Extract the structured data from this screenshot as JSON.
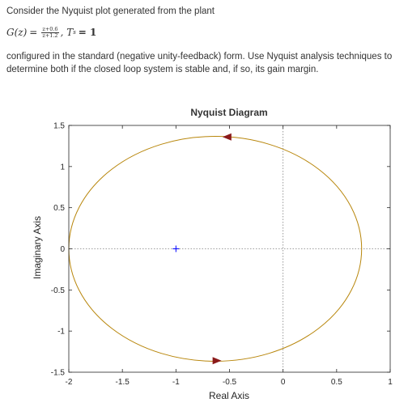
{
  "question": {
    "intro": "Consider the Nyquist plot generated from the plant",
    "eq_lhs": "G(z)",
    "eq_equals": "=",
    "frac_num": "z+0.6",
    "frac_den": "z+1.2",
    "eq_ts": ", T",
    "eq_ts_sub": "s",
    "eq_ts_val": "= 1",
    "body": "configured in the standard (negative unity-feedback) form. Use Nyquist analysis techniques to determine both if the closed loop system is stable and, if so, its gain margin."
  },
  "chart_data": {
    "type": "line",
    "title": "Nyquist Diagram",
    "xlabel": "Real Axis",
    "ylabel": "Imaginary Axis",
    "xlim": [
      -2,
      1
    ],
    "ylim": [
      -1.5,
      1.5
    ],
    "xticks": [
      -2,
      -1.5,
      -1,
      -0.5,
      0,
      0.5,
      1
    ],
    "xtick_labels": [
      "-2",
      "-1.5",
      "-1",
      "-0.5",
      "0",
      "0.5",
      "1"
    ],
    "yticks": [
      -1.5,
      -1,
      -0.5,
      0,
      0.5,
      1,
      1.5
    ],
    "ytick_labels": [
      "-1.5",
      "-1",
      "-0.5",
      "0",
      "0.5",
      "1",
      "1.5"
    ],
    "grid": false,
    "zero_lines": true,
    "series": [
      {
        "type": "circle",
        "center": [
          -0.6333,
          0
        ],
        "radius": 1.3667,
        "color": "#b8860b",
        "arrows": [
          {
            "at": [
              -0.52,
              1.36
            ],
            "direction": "left"
          },
          {
            "at": [
              -0.62,
              -1.36
            ],
            "direction": "right"
          }
        ]
      }
    ],
    "critical_point": {
      "x": -1,
      "y": 0,
      "marker": "+",
      "color": "#0000ff"
    },
    "colors": {
      "curve": "#b8860b",
      "arrow": "#8b1a1a",
      "marker": "#0000ff",
      "axes": "#262626",
      "zero_line": "#808080"
    }
  }
}
